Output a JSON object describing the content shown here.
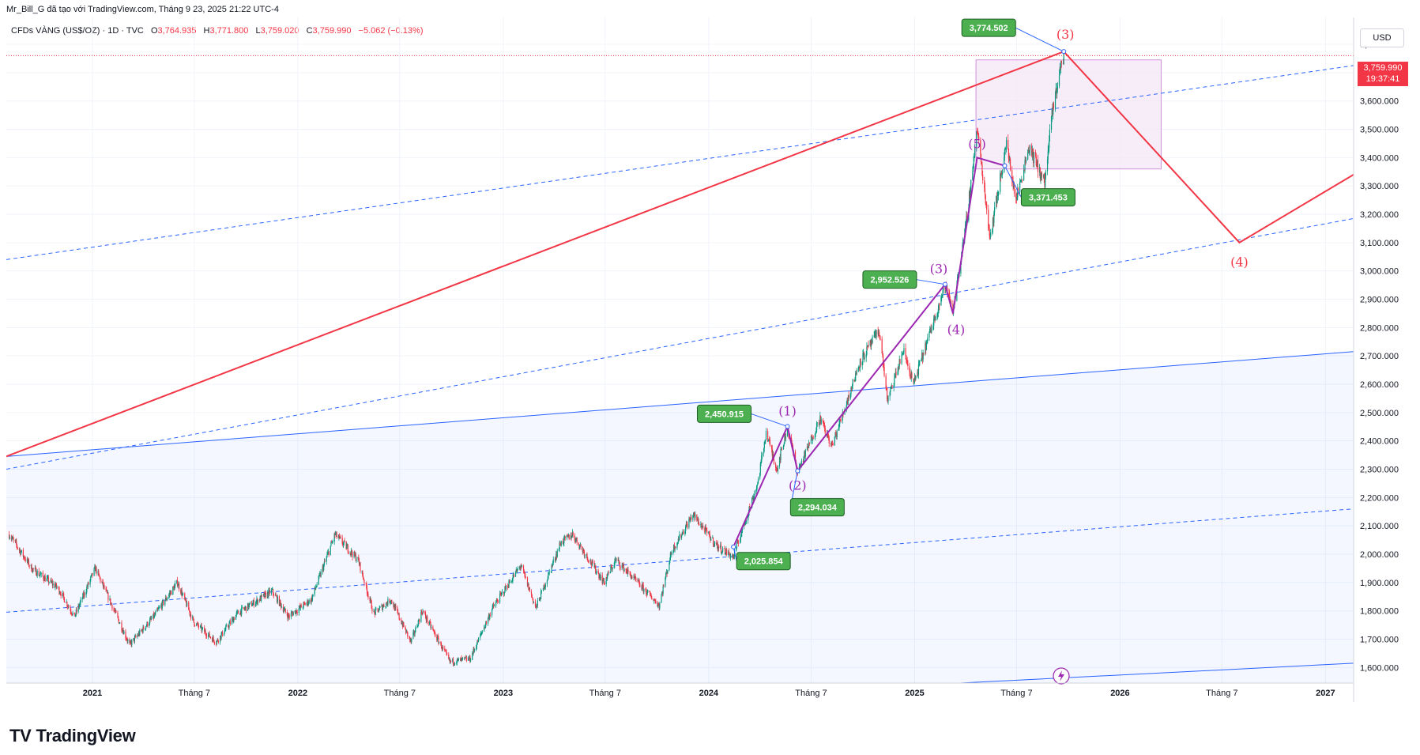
{
  "header": {
    "publisher_line": "Mr_Bill_G đã tạo với TradingView.com, Tháng 9 23, 2025 21:22 UTC-4",
    "symbol": "CFDs VÀNG (US$/OZ) · 1D · TVC",
    "open_label": "O",
    "open": "3,764.935",
    "high_label": "H",
    "high": "3,771.800",
    "low_label": "L",
    "low": "3,759.020",
    "close_label": "C",
    "close": "3,759.990",
    "change": "−5.062 (−0.13%)"
  },
  "price_scale": {
    "currency": "USD",
    "last_price": "3,759.990",
    "countdown": "19:37:41"
  },
  "branding": {
    "logo_text": "TV",
    "name": "TradingView"
  },
  "colors": {
    "up": "#089981",
    "down": "#f23645",
    "wave_major": "#f23645",
    "wave_minor": "#9c27b0",
    "channel": "#2962ff",
    "label_bg": "#4caf50",
    "box_fill": "#f3e5f5"
  },
  "chart_data": {
    "type": "candlestick",
    "title": "",
    "xlabel": "",
    "ylabel": "",
    "x_tick_labels": [
      "2021",
      "Tháng 7",
      "2022",
      "Tháng 7",
      "2023",
      "Tháng 7",
      "2024",
      "Tháng 7",
      "2025",
      "Tháng 7",
      "2026",
      "Tháng 7",
      "2027"
    ],
    "x_ticks": [
      "2021-01-01",
      "2021-07-01",
      "2022-01-01",
      "2022-07-01",
      "2023-01-01",
      "2023-07-01",
      "2024-01-01",
      "2024-07-01",
      "2025-01-01",
      "2025-07-01",
      "2026-01-01",
      "2026-07-01",
      "2027-01-01"
    ],
    "y_ticks": [
      1600,
      1700,
      1800,
      1900,
      2000,
      2100,
      2200,
      2300,
      2400,
      2500,
      2600,
      2700,
      2800,
      2900,
      3000,
      3100,
      3200,
      3300,
      3400,
      3500,
      3600,
      3700,
      3800
    ],
    "y_tick_labels": [
      "1,600.000",
      "1,700.000",
      "1,800.000",
      "1,900.000",
      "2,000.000",
      "2,100.000",
      "2,200.000",
      "2,300.000",
      "2,400.000",
      "2,500.000",
      "2,600.000",
      "2,700.000",
      "2,800.000",
      "2,900.000",
      "3,000.000",
      "3,100.000",
      "3,200.000",
      "3,300.000",
      "3,400.000",
      "3,500.000",
      "3,600.000",
      "3,700.000",
      "3,800.000"
    ],
    "ylim": [
      1545,
      3895
    ],
    "xlim": [
      "2020-08-01",
      "2027-02-20"
    ],
    "last_price": 3759.99,
    "price_path": [
      [
        "2020-08-06",
        2070
      ],
      [
        "2020-09-15",
        1950
      ],
      [
        "2020-11-01",
        1880
      ],
      [
        "2020-11-30",
        1780
      ],
      [
        "2021-01-06",
        1950
      ],
      [
        "2021-03-08",
        1680
      ],
      [
        "2021-04-20",
        1780
      ],
      [
        "2021-06-01",
        1900
      ],
      [
        "2021-06-30",
        1760
      ],
      [
        "2021-08-09",
        1690
      ],
      [
        "2021-09-15",
        1790
      ],
      [
        "2021-11-16",
        1870
      ],
      [
        "2021-12-15",
        1780
      ],
      [
        "2022-01-25",
        1840
      ],
      [
        "2022-03-08",
        2070
      ],
      [
        "2022-04-18",
        1980
      ],
      [
        "2022-05-16",
        1790
      ],
      [
        "2022-06-15",
        1840
      ],
      [
        "2022-07-21",
        1690
      ],
      [
        "2022-08-10",
        1800
      ],
      [
        "2022-09-28",
        1620
      ],
      [
        "2022-11-03",
        1630
      ],
      [
        "2022-12-13",
        1810
      ],
      [
        "2023-02-01",
        1960
      ],
      [
        "2023-02-28",
        1810
      ],
      [
        "2023-04-13",
        2040
      ],
      [
        "2023-05-04",
        2070
      ],
      [
        "2023-06-29",
        1900
      ],
      [
        "2023-07-20",
        1980
      ],
      [
        "2023-10-05",
        1820
      ],
      [
        "2023-10-27",
        2010
      ],
      [
        "2023-12-04",
        2140
      ],
      [
        "2024-01-15",
        2030
      ],
      [
        "2024-02-14",
        1990
      ],
      [
        "2024-03-28",
        2250
      ],
      [
        "2024-04-12",
        2430
      ],
      [
        "2024-05-01",
        2300
      ],
      [
        "2024-05-20",
        2450
      ],
      [
        "2024-06-07",
        2290
      ],
      [
        "2024-07-17",
        2480
      ],
      [
        "2024-08-07",
        2380
      ],
      [
        "2024-09-26",
        2680
      ],
      [
        "2024-10-30",
        2790
      ],
      [
        "2024-11-14",
        2540
      ],
      [
        "2024-12-12",
        2720
      ],
      [
        "2024-12-30",
        2600
      ],
      [
        "2025-02-24",
        2950
      ],
      [
        "2025-03-10",
        2860
      ],
      [
        "2025-04-02",
        3160
      ],
      [
        "2025-04-22",
        3500
      ],
      [
        "2025-05-15",
        3120
      ],
      [
        "2025-06-13",
        3450
      ],
      [
        "2025-06-30",
        3250
      ],
      [
        "2025-07-23",
        3440
      ],
      [
        "2025-08-20",
        3310
      ],
      [
        "2025-09-02",
        3550
      ],
      [
        "2025-09-15",
        3700
      ],
      [
        "2025-09-23",
        3760
      ]
    ],
    "price_scale_step_note": "",
    "annotations": {
      "price_labels": [
        {
          "text": "3,774.502",
          "x": "2025-09-23",
          "y": 3774.502
        },
        {
          "text": "3,371.453",
          "x": "2025-06-10",
          "y": 3371.453
        },
        {
          "text": "2,952.526",
          "x": "2025-02-24",
          "y": 2952.526
        },
        {
          "text": "2,450.915",
          "x": "2024-05-20",
          "y": 2450.915
        },
        {
          "text": "2,294.034",
          "x": "2024-06-07",
          "y": 2294.034
        },
        {
          "text": "2,025.854",
          "x": "2024-02-14",
          "y": 2025.854
        }
      ],
      "wave_labels_minor": [
        {
          "text": "(1)",
          "x": "2024-05-20",
          "y": 2450.915
        },
        {
          "text": "(2)",
          "x": "2024-06-07",
          "y": 2294.034
        },
        {
          "text": "(3)",
          "x": "2025-02-24",
          "y": 2952.526
        },
        {
          "text": "(4)",
          "x": "2025-03-10",
          "y": 2850
        },
        {
          "text": "(5)",
          "x": "2025-04-22",
          "y": 3400
        }
      ],
      "wave_labels_major": [
        {
          "text": "(3)",
          "x": "2025-09-23",
          "y": 3774.502
        },
        {
          "text": "(4)",
          "x": "2026-08-01",
          "y": 3100
        }
      ]
    },
    "series": [
      {
        "type": "wave_major",
        "points": [
          [
            "2020-08-01",
            2345
          ],
          [
            "2025-09-23",
            3774.502
          ],
          [
            "2026-08-01",
            3100
          ],
          [
            "2027-02-20",
            3340
          ]
        ]
      },
      {
        "type": "wave_minor",
        "points": [
          [
            "2024-02-14",
            2025.854
          ],
          [
            "2024-05-20",
            2450.915
          ],
          [
            "2024-06-07",
            2294.034
          ],
          [
            "2025-02-24",
            2952.526
          ],
          [
            "2025-03-10",
            2850
          ],
          [
            "2025-04-22",
            3400
          ],
          [
            "2025-06-10",
            3371.453
          ]
        ]
      },
      {
        "type": "channel_solid",
        "points": [
          [
            "2020-08-01",
            2345
          ],
          [
            "2027-02-20",
            2715
          ]
        ]
      },
      {
        "type": "channel_solid",
        "points": [
          [
            "2025-02-01",
            1540
          ],
          [
            "2027-02-20",
            1615
          ]
        ]
      },
      {
        "type": "channel_dashed",
        "points": [
          [
            "2020-08-01",
            3040
          ],
          [
            "2027-02-20",
            3725
          ]
        ]
      },
      {
        "type": "channel_dashed",
        "points": [
          [
            "2020-08-01",
            2300
          ],
          [
            "2027-02-20",
            3185
          ]
        ]
      },
      {
        "type": "channel_dashed",
        "points": [
          [
            "2020-08-01",
            1795
          ],
          [
            "2027-02-20",
            2160
          ]
        ]
      }
    ],
    "box": {
      "x0": "2025-04-20",
      "x1": "2026-03-15",
      "y0": 3360,
      "y1": 3745
    }
  }
}
